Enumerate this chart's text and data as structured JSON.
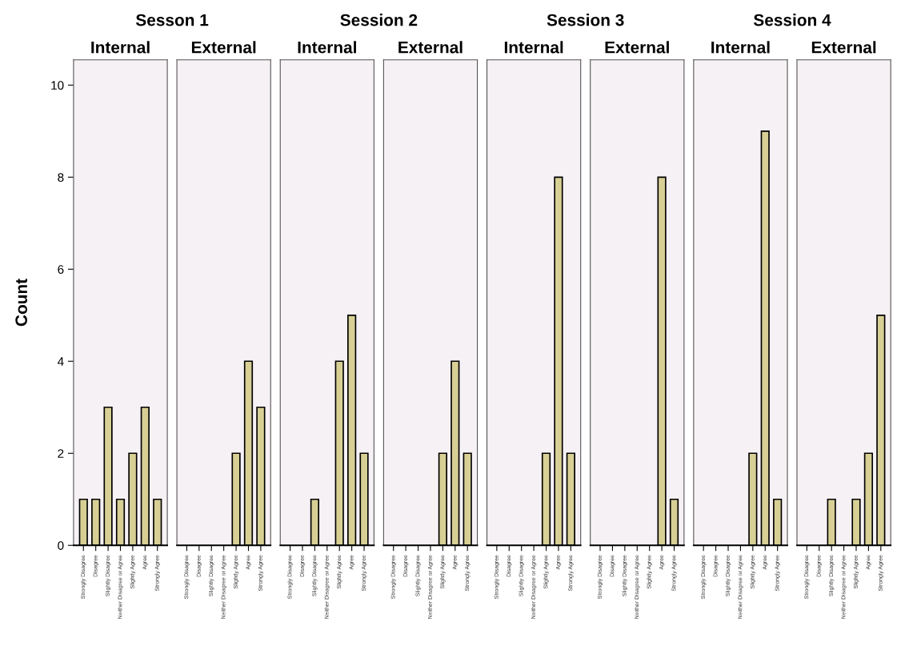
{
  "chart_data": [
    {
      "type": "bar",
      "title": "Sesson 1",
      "subtitle": "Internal",
      "ylabel": "Count",
      "categories": [
        "Strongly Disagree",
        "Disagree",
        "Slightly Disagree",
        "Neither Disagree or Agree",
        "Slightly Agree",
        "Agree",
        "Strongly Agree"
      ],
      "values": [
        1,
        1,
        3,
        1,
        2,
        3,
        1
      ],
      "color": "#d8cf95",
      "ylim": [
        0,
        10.55
      ],
      "yticks": [
        0,
        2,
        4,
        6,
        8,
        10
      ],
      "grid": false
    },
    {
      "type": "bar",
      "subtitle": "External",
      "categories": [
        "Strongly Disagree",
        "Disagree",
        "Slightly Disagree",
        "Neither Disagree or Agree",
        "Slightly Agree",
        "Agree",
        "Strongly Agree"
      ],
      "values": [
        null,
        null,
        null,
        null,
        2,
        4,
        3
      ],
      "color": "#d8cf95",
      "ylim": [
        0,
        10.55
      ],
      "yticks": [
        0,
        2,
        4,
        6,
        8,
        10
      ],
      "tick_labels": "x",
      "grid": false
    },
    {
      "type": "bar",
      "title": "Session 2",
      "subtitle": "Internal",
      "categories": [
        "Strongly Disagree",
        "Disagree",
        "Slightly Disagree",
        "Neither Disagree or Agree",
        "Slightly Agree",
        "Agree",
        "Strongly Agree"
      ],
      "values": [
        null,
        null,
        1,
        null,
        4,
        5,
        2
      ],
      "color": "#d8cf95",
      "ylim": [
        0,
        10.55
      ],
      "yticks": [
        0,
        2,
        4,
        6,
        8,
        10
      ],
      "tick_labels": "x",
      "grid": false
    },
    {
      "type": "bar",
      "subtitle": "External",
      "categories": [
        "Strongly Disagree",
        "Disagree",
        "Slightly Disagree",
        "Neither Disagree or Agree",
        "Slightly Agree",
        "Agree",
        "Strongly Agree"
      ],
      "values": [
        null,
        null,
        null,
        null,
        2,
        4,
        2
      ],
      "color": "#d8cf95",
      "ylim": [
        0,
        10.55
      ],
      "yticks": [
        0,
        2,
        4,
        6,
        8,
        10
      ],
      "tick_labels": "x",
      "grid": false
    },
    {
      "type": "bar",
      "title": "Session 3",
      "subtitle": "Internal",
      "categories": [
        "Strongly Disagree",
        "Disagree",
        "Slightly Disagree",
        "Neither Disagree or Agree",
        "Slightly Agree",
        "Agree",
        "Strongly Agree"
      ],
      "values": [
        null,
        null,
        null,
        null,
        2,
        8,
        2
      ],
      "color": "#d8cf95",
      "ylim": [
        0,
        10.55
      ],
      "yticks": [
        0,
        2,
        4,
        6,
        8,
        10
      ],
      "tick_labels": "x",
      "grid": false
    },
    {
      "type": "bar",
      "subtitle": "External",
      "categories": [
        "Strongly Disagree",
        "Disagree",
        "Slightly Disagree",
        "Neither Disagree or Agree",
        "Slightly Agree",
        "Agree",
        "Strongly Agree"
      ],
      "values": [
        null,
        null,
        null,
        null,
        null,
        8,
        1
      ],
      "color": "#d8cf95",
      "ylim": [
        0,
        10.55
      ],
      "yticks": [
        0,
        2,
        4,
        6,
        8,
        10
      ],
      "tick_labels": "x",
      "grid": false
    },
    {
      "type": "bar",
      "title": "Session 4",
      "subtitle": "Internal",
      "categories": [
        "Strongly Disagree",
        "Disagree",
        "Slightly Disagree",
        "Neither Disagree or Agree",
        "Slightly Agree",
        "Agree",
        "Strongly Agree"
      ],
      "values": [
        null,
        null,
        null,
        null,
        2,
        9,
        1
      ],
      "color": "#d8cf95",
      "ylim": [
        0,
        10.55
      ],
      "yticks": [
        0,
        2,
        4,
        6,
        8,
        10
      ],
      "tick_labels": "x",
      "grid": false
    },
    {
      "type": "bar",
      "subtitle": "External",
      "categories": [
        "Strongly Disagree",
        "Disagree",
        "Slightly Disagree",
        "Neither Disagree or Agree",
        "Slightly Agree",
        "Agree",
        "Strongly Agree"
      ],
      "values": [
        null,
        null,
        1,
        null,
        1,
        2,
        5
      ],
      "color": "#d8cf95",
      "ylim": [
        0,
        10.55
      ],
      "yticks": [
        0,
        2,
        4,
        6,
        8,
        10
      ],
      "tick_labels": "x",
      "grid": false
    }
  ]
}
